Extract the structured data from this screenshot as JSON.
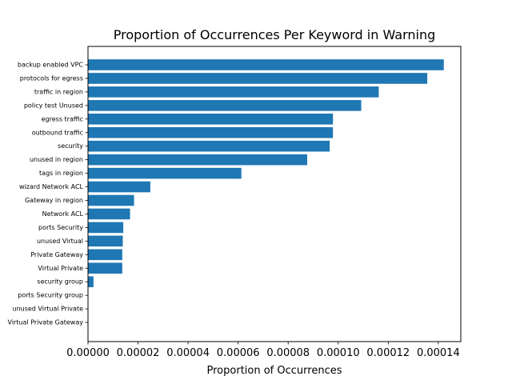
{
  "chart_data": {
    "type": "bar",
    "orientation": "horizontal",
    "title": "Proportion of Occurrences Per Keyword in Warning",
    "xlabel": "Proportion of Occurrences",
    "ylabel": "",
    "xlim": [
      0,
      0.000149
    ],
    "xticks": [
      0,
      2e-05,
      4e-05,
      6e-05,
      8e-05,
      0.0001,
      0.00012,
      0.00014
    ],
    "xtick_labels": [
      "0.00000",
      "0.00002",
      "0.00004",
      "0.00006",
      "0.00008",
      "0.00010",
      "0.00012",
      "0.00014"
    ],
    "grid": false,
    "bar_color": "#1f77b4",
    "categories": [
      "backup enabled VPC",
      "protocols for egress",
      "traffic in region",
      "policy test Unused",
      "egress traffic",
      "outbound traffic",
      "security",
      "unused in region",
      "tags in region",
      "wizard Network ACL",
      "Gateway in region",
      "Network ACL",
      "ports Security",
      "unused Virtual",
      "Private Gateway",
      "Virtual Private",
      "security group",
      "ports Security group",
      "unused Virtual Private",
      "Virtual Private Gateway"
    ],
    "values": [
      0.0001422,
      0.0001356,
      0.0001162,
      0.0001092,
      9.79e-05,
      9.79e-05,
      9.66e-05,
      8.76e-05,
      6.13e-05,
      2.49e-05,
      1.84e-05,
      1.68e-05,
      1.41e-05,
      1.39e-05,
      1.37e-05,
      1.37e-05,
      2.2e-06,
      0.0,
      0.0,
      0.0
    ]
  }
}
